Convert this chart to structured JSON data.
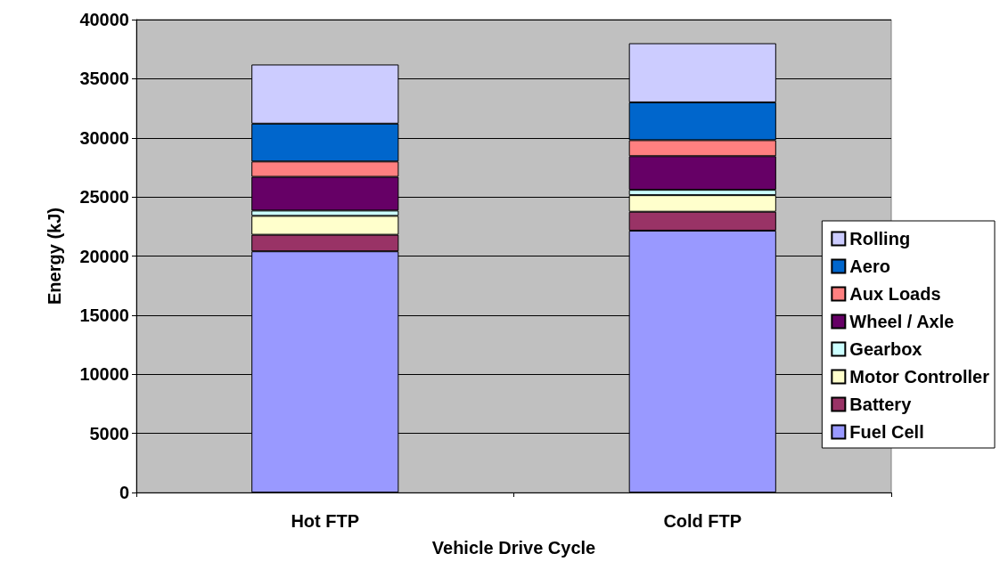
{
  "chart_data": {
    "type": "bar",
    "stacked": true,
    "xlabel": "Vehicle Drive Cycle",
    "ylabel": "Energy (kJ)",
    "categories": [
      "Hot FTP",
      "Cold FTP"
    ],
    "series": [
      {
        "name": "Fuel Cell",
        "color": "#9999ff",
        "values": [
          20400,
          22150
        ]
      },
      {
        "name": "Battery",
        "color": "#993366",
        "values": [
          1400,
          1600
        ]
      },
      {
        "name": "Motor Controller",
        "color": "#ffffcc",
        "values": [
          1600,
          1400
        ]
      },
      {
        "name": "Gearbox",
        "color": "#ccffff",
        "values": [
          450,
          450
        ]
      },
      {
        "name": "Wheel / Axle",
        "color": "#660066",
        "values": [
          2850,
          2850
        ]
      },
      {
        "name": "Aux Loads",
        "color": "#ff8080",
        "values": [
          1300,
          1350
        ]
      },
      {
        "name": "Aero",
        "color": "#0066cc",
        "values": [
          3200,
          3200
        ]
      },
      {
        "name": "Rolling",
        "color": "#ccccff",
        "values": [
          5000,
          5000
        ]
      }
    ],
    "ylim": [
      0,
      40000
    ],
    "yticks": [
      0,
      5000,
      10000,
      15000,
      20000,
      25000,
      30000,
      35000,
      40000
    ],
    "grid": "y",
    "legend": "right"
  }
}
